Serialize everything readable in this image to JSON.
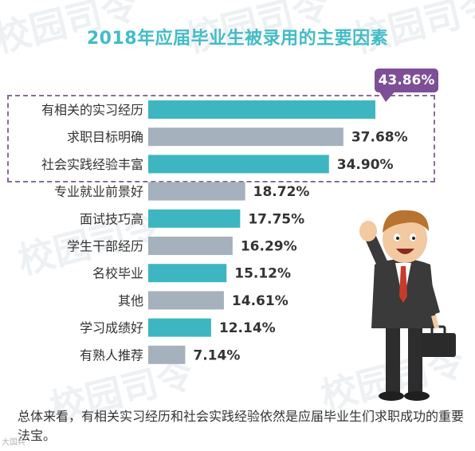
{
  "title": "2018年应届毕业生被录用的主要因素",
  "callout_value": "43.86%",
  "watermark": "校园司令",
  "colors": {
    "teal": "#3db6c2",
    "gray": "#a5b1bc",
    "title": "#43bcc6",
    "callout": "#7e4f96"
  },
  "chart_data": {
    "type": "bar",
    "orientation": "horizontal",
    "title": "2018年应届毕业生被录用的主要因素",
    "categories": [
      "有相关的实习经历",
      "求职目标明确",
      "社会实践经验丰富",
      "专业就业前景好",
      "面试技巧高",
      "学生干部经历",
      "名校毕业",
      "其他",
      "学习成绩好",
      "有熟人推荐"
    ],
    "values": [
      43.86,
      37.68,
      34.9,
      18.72,
      17.75,
      16.29,
      15.12,
      14.61,
      12.14,
      7.14
    ],
    "labels": [
      "",
      "37.68%",
      "34.90%",
      "18.72%",
      "17.75%",
      "16.29%",
      "15.12%",
      "14.61%",
      "12.14%",
      "7.14%"
    ],
    "bar_colors": [
      "teal",
      "gray",
      "teal",
      "gray",
      "teal",
      "gray",
      "teal",
      "gray",
      "teal",
      "gray"
    ],
    "grid": false,
    "legend": "none"
  },
  "footer_text": "总体来看，有相关实习经历和社会实践经验依然是应届毕业生们求职成功的重要法宝。",
  "corner_badge": "大国兵"
}
